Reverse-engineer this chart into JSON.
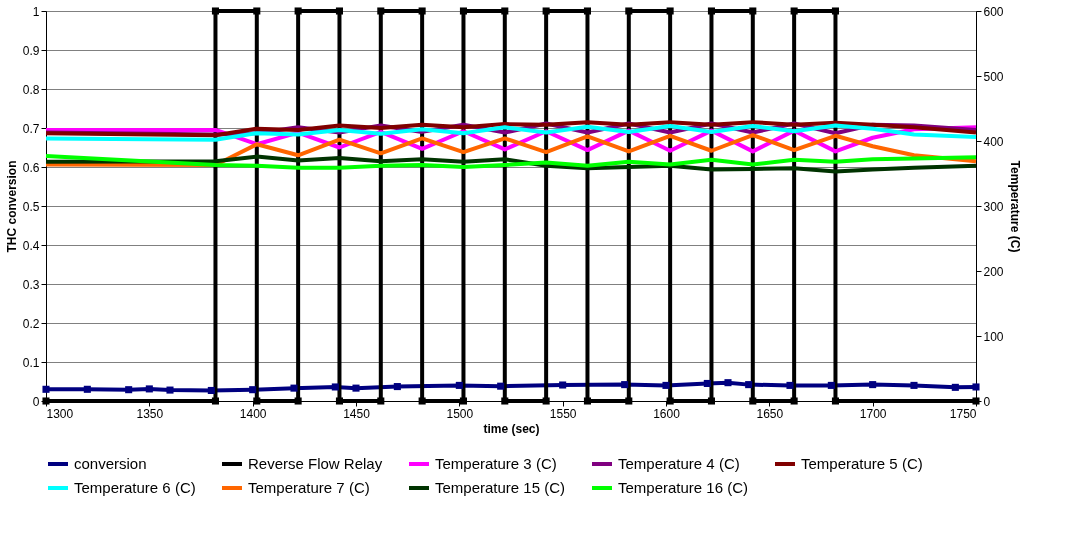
{
  "chart_data": {
    "type": "line",
    "xlabel": "time (sec)",
    "ylabel": "THC conversion",
    "y2label": "Temperature (C)",
    "xlim": [
      1300,
      1750
    ],
    "xticks": [
      1300,
      1350,
      1400,
      1450,
      1500,
      1550,
      1600,
      1650,
      1700,
      1750
    ],
    "ylim": [
      0,
      1
    ],
    "yticks": [
      0,
      0.1,
      0.2,
      0.3,
      0.4,
      0.5,
      0.6,
      0.7,
      0.8,
      0.9,
      1
    ],
    "y2lim": [
      0,
      600
    ],
    "y2ticks": [
      0,
      100,
      200,
      300,
      400,
      500,
      600
    ],
    "grid": "y",
    "legend": "bottom",
    "line_style": "solid",
    "x": [
      1300,
      1382,
      1402,
      1422,
      1442,
      1462,
      1482,
      1502,
      1522,
      1542,
      1562,
      1582,
      1602,
      1622,
      1642,
      1662,
      1682,
      1700,
      1720,
      1750
    ],
    "series": [
      {
        "name": "conversion",
        "color": "#000080",
        "marker": "square",
        "x": [
          1300,
          1320,
          1340,
          1350,
          1360,
          1380,
          1400,
          1420,
          1440,
          1450,
          1470,
          1500,
          1520,
          1550,
          1580,
          1600,
          1620,
          1630,
          1640,
          1660,
          1680,
          1700,
          1720,
          1740,
          1750
        ],
        "values": [
          0.03,
          0.03,
          0.029,
          0.031,
          0.028,
          0.027,
          0.029,
          0.033,
          0.036,
          0.033,
          0.037,
          0.04,
          0.038,
          0.041,
          0.042,
          0.04,
          0.045,
          0.047,
          0.042,
          0.04,
          0.04,
          0.042,
          0.04,
          0.035,
          0.036
        ]
      },
      {
        "name": "Reverse Flow Relay",
        "color": "#000000",
        "marker": "square",
        "x": [
          1300,
          1382,
          1382,
          1402,
          1402,
          1422,
          1422,
          1442,
          1442,
          1462,
          1462,
          1482,
          1482,
          1502,
          1502,
          1522,
          1522,
          1542,
          1542,
          1562,
          1562,
          1582,
          1582,
          1602,
          1602,
          1622,
          1622,
          1642,
          1642,
          1662,
          1662,
          1682,
          1682,
          1750
        ],
        "values": [
          0,
          0,
          1,
          1,
          0,
          0,
          1,
          1,
          0,
          0,
          1,
          1,
          0,
          0,
          1,
          1,
          0,
          0,
          1,
          1,
          0,
          0,
          1,
          1,
          0,
          0,
          1,
          1,
          0,
          0,
          1,
          1,
          0,
          0
        ]
      },
      {
        "name": "Temperature 3 (C)",
        "color": "#ff00ff",
        "axis": "y2",
        "values": [
          417,
          417,
          395,
          413,
          390,
          414,
          388,
          415,
          387,
          415,
          386,
          416,
          385,
          416,
          384,
          416,
          384,
          405,
          418,
          421
        ]
      },
      {
        "name": "Temperature 4 (C)",
        "color": "#800080",
        "axis": "y2",
        "values": [
          413,
          410,
          412,
          421,
          413,
          424,
          414,
          425,
          413,
          427,
          413,
          427,
          413,
          427,
          413,
          427,
          412,
          425,
          424,
          417
        ]
      },
      {
        "name": "Temperature 5 (C)",
        "color": "#800000",
        "axis": "y2",
        "values": [
          412,
          409,
          419,
          417,
          424,
          420,
          425,
          421,
          426,
          425,
          429,
          425,
          429,
          425,
          429,
          425,
          428,
          425,
          421,
          413
        ]
      },
      {
        "name": "Temperature 6 (C)",
        "color": "#00ffff",
        "axis": "y2",
        "values": [
          404,
          402,
          412,
          410,
          417,
          411,
          418,
          412,
          421,
          413,
          422,
          414,
          423,
          414,
          423,
          415,
          424,
          419,
          410,
          406
        ]
      },
      {
        "name": "Temperature 7 (C)",
        "color": "#ff6600",
        "axis": "y2",
        "values": [
          364,
          363,
          395,
          378,
          402,
          381,
          404,
          383,
          404,
          383,
          407,
          384,
          408,
          385,
          409,
          386,
          408,
          392,
          378,
          369
        ]
      },
      {
        "name": "Temperature 15 (C)",
        "color": "#003300",
        "axis": "y2",
        "values": [
          368,
          369,
          376,
          370,
          374,
          369,
          372,
          368,
          372,
          362,
          358,
          360,
          362,
          356,
          357,
          358,
          353,
          356,
          359,
          362
        ]
      },
      {
        "name": "Temperature 16 (C)",
        "color": "#00ff00",
        "axis": "y2",
        "values": [
          377,
          363,
          362,
          359,
          359,
          362,
          363,
          360,
          363,
          367,
          362,
          368,
          364,
          371,
          364,
          371,
          368,
          372,
          373,
          375
        ]
      }
    ]
  }
}
